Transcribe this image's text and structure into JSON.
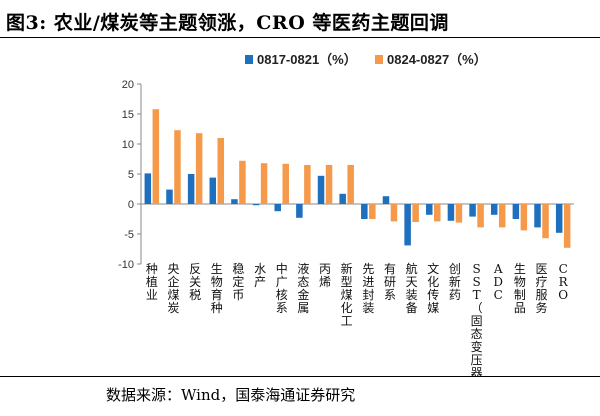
{
  "title": "图3: 农业/煤炭等主题领涨，CRO 等医药主题回调",
  "source": "数据来源：Wind，国泰海通证券研究",
  "chart_data": {
    "type": "bar",
    "categories": [
      "种植业",
      "央企煤炭",
      "反关税",
      "生物育种",
      "稳定币",
      "水产",
      "中广核系",
      "液态金属",
      "丙烯",
      "新型煤化工",
      "先进封装",
      "有研系",
      "航天装备",
      "文化传媒",
      "创新药",
      "SST（固态变压器）",
      "ADC",
      "生物制品",
      "医疗服务",
      "CRO"
    ],
    "series": [
      {
        "name": "0817-0821（%）",
        "color": "#1f6fbf",
        "values": [
          5.1,
          2.4,
          5.0,
          4.4,
          0.8,
          -0.2,
          -1.2,
          -2.3,
          4.7,
          1.7,
          -2.5,
          1.3,
          -6.9,
          -1.8,
          -2.8,
          -2.1,
          -1.8,
          -2.5,
          -3.9,
          -4.8
        ]
      },
      {
        "name": "0824-0827（%）",
        "color": "#f5994a",
        "values": [
          15.8,
          12.3,
          11.8,
          11.0,
          7.2,
          6.8,
          6.7,
          6.5,
          6.5,
          6.5,
          -2.5,
          -2.9,
          -3.0,
          -2.9,
          -3.1,
          -3.9,
          -3.9,
          -4.4,
          -5.7,
          -7.3
        ]
      }
    ],
    "ylim": [
      -10,
      20
    ],
    "yticks": [
      -10,
      -5,
      0,
      5,
      10,
      15,
      20
    ],
    "legend_position": "top-center",
    "grid": false
  }
}
